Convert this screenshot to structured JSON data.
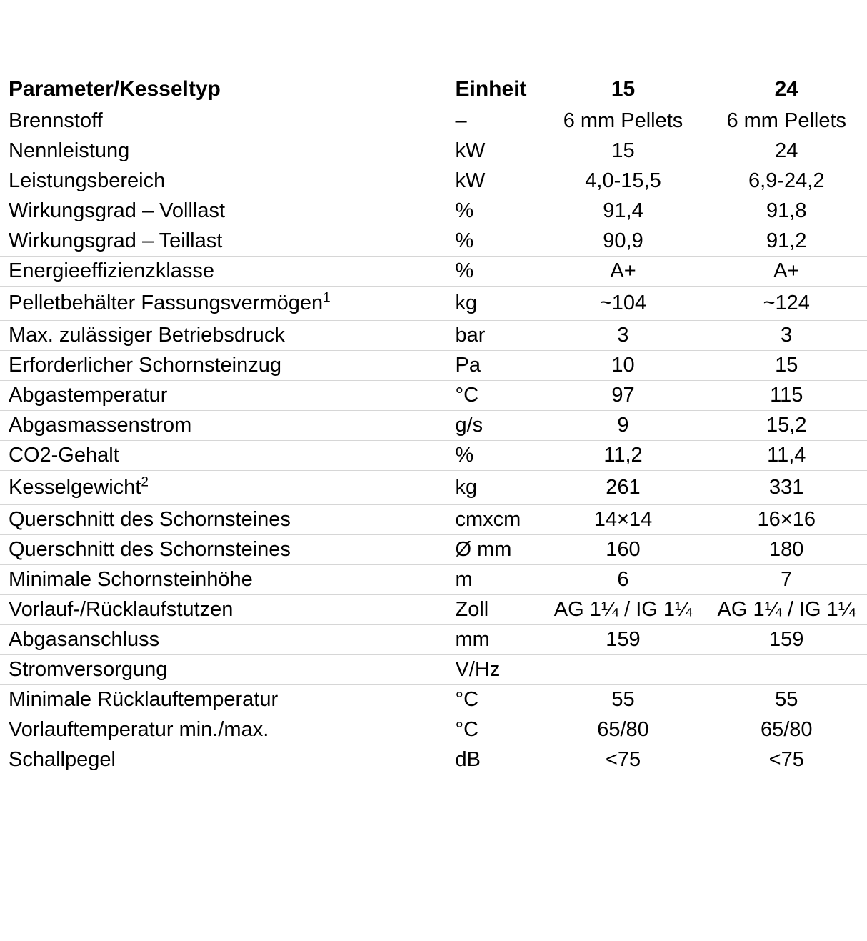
{
  "page": {
    "background": "#ffffff",
    "grid_line_color": "#d6d6d6",
    "text_color": "#000000"
  },
  "table": {
    "header": {
      "param": "Parameter/Kesseltyp",
      "unit": "Einheit",
      "col15": "15",
      "col24": "24"
    },
    "rows": [
      {
        "param": "Brennstoff",
        "sup": "",
        "unit": "–",
        "v15": "6 mm Pellets",
        "v24": "6 mm Pellets"
      },
      {
        "param": "Nennleistung",
        "sup": "",
        "unit": "kW",
        "v15": "15",
        "v24": "24"
      },
      {
        "param": "Leistungsbereich",
        "sup": "",
        "unit": "kW",
        "v15": "4,0-15,5",
        "v24": "6,9-24,2"
      },
      {
        "param": "Wirkungsgrad – Volllast",
        "sup": "",
        "unit": "%",
        "v15": "91,4",
        "v24": "91,8"
      },
      {
        "param": "Wirkungsgrad – Teillast",
        "sup": "",
        "unit": "%",
        "v15": "90,9",
        "v24": "91,2"
      },
      {
        "param": "Energieeffizienzklasse",
        "sup": "",
        "unit": "%",
        "v15": "A+",
        "v24": "A+"
      },
      {
        "param": "Pelletbehälter Fassungsvermögen",
        "sup": "1",
        "unit": "kg",
        "v15": "~104",
        "v24": "~124"
      },
      {
        "param": "Max. zulässiger Betriebsdruck",
        "sup": "",
        "unit": "bar",
        "v15": "3",
        "v24": "3"
      },
      {
        "param": "Erforderlicher Schornsteinzug",
        "sup": "",
        "unit": "Pa",
        "v15": "10",
        "v24": "15"
      },
      {
        "param": "Abgastemperatur",
        "sup": "",
        "unit": "°C",
        "v15": "97",
        "v24": "115"
      },
      {
        "param": "Abgasmassenstrom",
        "sup": "",
        "unit": "g/s",
        "v15": "9",
        "v24": "15,2"
      },
      {
        "param": "CO2-Gehalt",
        "sup": "",
        "unit": "%",
        "v15": "11,2",
        "v24": "11,4"
      },
      {
        "param": "Kesselgewicht",
        "sup": "2",
        "unit": "kg",
        "v15": "261",
        "v24": "331"
      },
      {
        "param": "Querschnitt des Schornsteines",
        "sup": "",
        "unit": "cmxcm",
        "v15": "14×14",
        "v24": "16×16"
      },
      {
        "param": "Querschnitt des Schornsteines",
        "sup": "",
        "unit": "Ø mm",
        "v15": "160",
        "v24": "180"
      },
      {
        "param": "Minimale Schornsteinhöhe",
        "sup": "",
        "unit": "m",
        "v15": "6",
        "v24": "7"
      },
      {
        "param": "Vorlauf-/Rücklaufstutzen",
        "sup": "",
        "unit": "Zoll",
        "v15": "AG 1¼ / IG 1¼",
        "v24": "AG 1¼ / IG 1¼"
      },
      {
        "param": "Abgasanschluss",
        "sup": "",
        "unit": "mm",
        "v15": "159",
        "v24": "159"
      },
      {
        "param": "Stromversorgung",
        "sup": "",
        "unit": "V/Hz",
        "v15": "",
        "v24": ""
      },
      {
        "param": "Minimale Rücklauftemperatur",
        "sup": "",
        "unit": "°C",
        "v15": "55",
        "v24": "55"
      },
      {
        "param": "Vorlauftemperatur min./max.",
        "sup": "",
        "unit": "°C",
        "v15": "65/80",
        "v24": "65/80"
      },
      {
        "param": "Schallpegel",
        "sup": "",
        "unit": "dB",
        "v15": "<75",
        "v24": "<75"
      }
    ]
  }
}
